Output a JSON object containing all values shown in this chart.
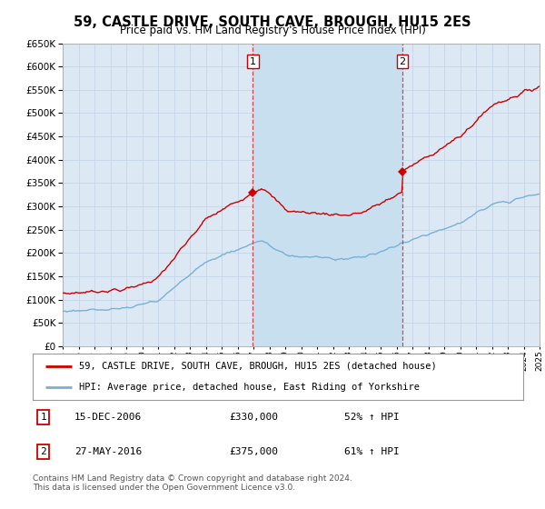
{
  "title": "59, CASTLE DRIVE, SOUTH CAVE, BROUGH, HU15 2ES",
  "subtitle": "Price paid vs. HM Land Registry's House Price Index (HPI)",
  "background_color": "#ffffff",
  "grid_color": "#c8d8e8",
  "plot_bg_color": "#dce9f5",
  "sale_band_color": "#c8dff0",
  "ylim": [
    0,
    650000
  ],
  "yticks": [
    0,
    50000,
    100000,
    150000,
    200000,
    250000,
    300000,
    350000,
    400000,
    450000,
    500000,
    550000,
    600000,
    650000
  ],
  "sale1_year": 2006.96,
  "sale1_price": 330000,
  "sale2_year": 2016.38,
  "sale2_price": 375000,
  "red_line_color": "#cc0000",
  "blue_line_color": "#7ab0d4",
  "vline_color": "#dd3333",
  "legend_red_label": "59, CASTLE DRIVE, SOUTH CAVE, BROUGH, HU15 2ES (detached house)",
  "legend_blue_label": "HPI: Average price, detached house, East Riding of Yorkshire",
  "footer": "Contains HM Land Registry data © Crown copyright and database right 2024.\nThis data is licensed under the Open Government Licence v3.0.",
  "xstart_year": 1995,
  "xend_year": 2025
}
